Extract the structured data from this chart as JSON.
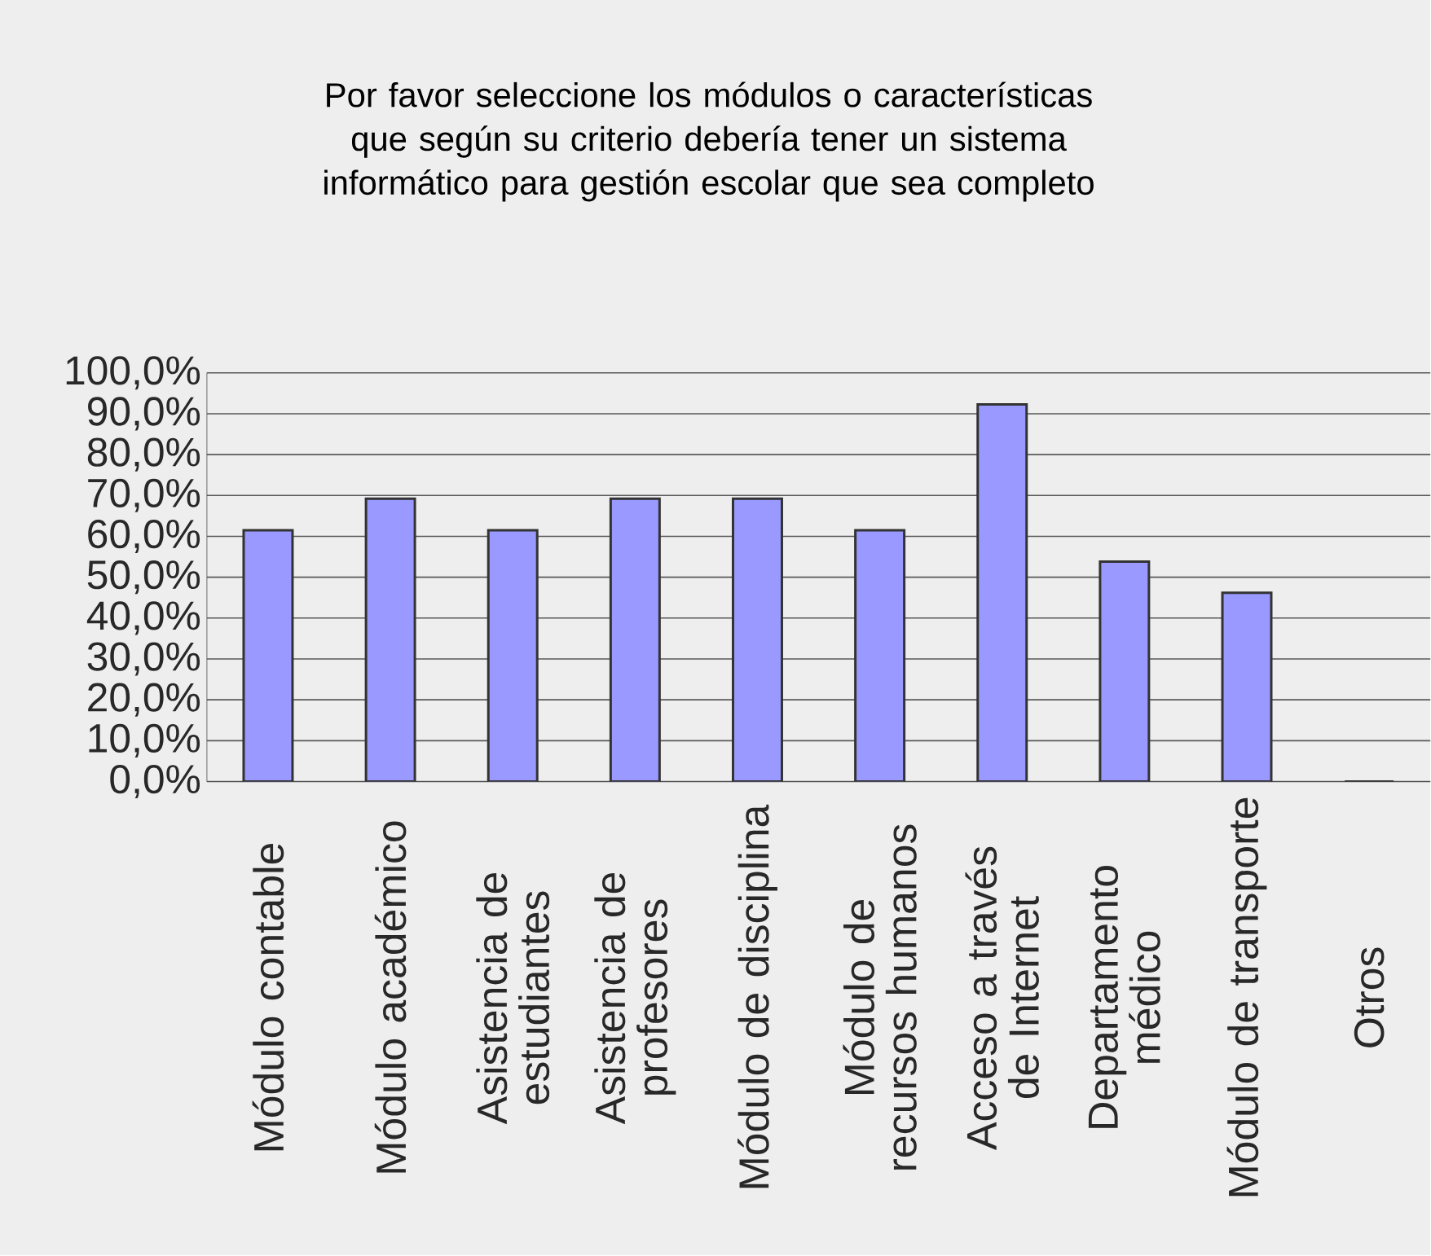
{
  "chart_data": {
    "type": "bar",
    "title": "Por favor seleccione los módulos o características que según su criterio debería tener un sistema informático para gestión escolar que sea completo",
    "categories": [
      "Módulo contable",
      "Módulo académico",
      "Asistencia de estudiantes",
      "Asistencia de profesores",
      "Módulo de disciplina",
      "Módulo de recursos humanos",
      "Acceso a través de Internet",
      "Departamento médico",
      "Módulo de transporte",
      "Otros"
    ],
    "values": [
      61.5,
      69.2,
      61.5,
      69.2,
      69.2,
      61.5,
      92.3,
      53.8,
      46.2,
      0
    ],
    "color": "#9999ff",
    "ylim": [
      0,
      100
    ],
    "yticks": [
      {
        "value": 0,
        "label": "0,0%"
      },
      {
        "value": 10,
        "label": "10,0%"
      },
      {
        "value": 20,
        "label": "20,0%"
      },
      {
        "value": 30,
        "label": "30,0%"
      },
      {
        "value": 40,
        "label": "40,0%"
      },
      {
        "value": 50,
        "label": "50,0%"
      },
      {
        "value": 60,
        "label": "60,0%"
      },
      {
        "value": 70,
        "label": "70,0%"
      },
      {
        "value": 80,
        "label": "80,0%"
      },
      {
        "value": 90,
        "label": "90,0%"
      },
      {
        "value": 100,
        "label": "100,0%"
      }
    ],
    "grid": "y"
  }
}
